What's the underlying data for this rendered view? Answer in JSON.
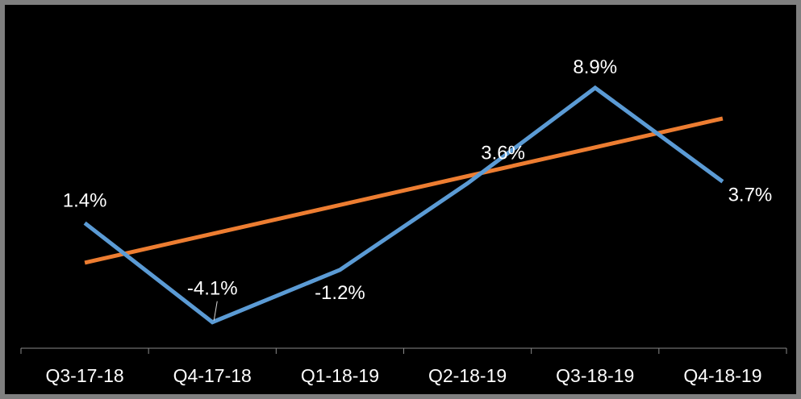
{
  "chart_data": {
    "type": "line",
    "categories": [
      "Q3-17-18",
      "Q4-17-18",
      "Q1-18-19",
      "Q2-18-19",
      "Q3-18-19",
      "Q4-18-19"
    ],
    "series": [
      {
        "color": "#5b9bd5",
        "values": [
          1.4,
          -4.1,
          -1.2,
          3.6,
          8.9,
          3.7
        ],
        "data_labels": [
          "1.4%",
          "-4.1%",
          "-1.2%",
          "3.6%",
          "8.9%",
          "3.7%"
        ]
      },
      {
        "color": "#ed7d31",
        "type": "trendline",
        "values": [
          -0.8,
          0.8,
          2.4,
          4.0,
          5.6,
          7.2
        ]
      }
    ],
    "title": "",
    "xlabel": "",
    "ylabel": "",
    "ylim": [
      -5.5,
      11.0
    ],
    "grid": false,
    "legend": "none",
    "axis_color": "#8a8a8a",
    "text_color": "#ffffff"
  }
}
